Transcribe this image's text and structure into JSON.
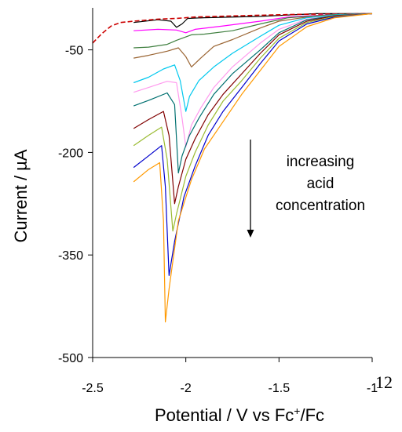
{
  "figure_number": "12",
  "chart_data": {
    "type": "line",
    "xlabel": "Potential / V vs Fc",
    "xlabel_sup": "+",
    "xlabel_tail": "/Fc",
    "ylabel": "Current / µA",
    "xlim": [
      -2.5,
      -1
    ],
    "ylim": [
      -500,
      0
    ],
    "x_ticks": [
      -2.5,
      -2,
      -1.5,
      -1
    ],
    "x_tick_labels": [
      "-2.5",
      "-2",
      "-1.5",
      "-1"
    ],
    "y_ticks": [
      -50,
      -200,
      -350,
      -500
    ],
    "y_tick_labels": [
      "-50",
      "-200",
      "-350",
      "-500"
    ],
    "grid": false,
    "annotation": {
      "lines": [
        "increasing",
        "acid",
        "concentration"
      ],
      "arrow": "down"
    },
    "series": [
      {
        "color": "#000000",
        "style": "solid",
        "points": [
          [
            -2.28,
            -10
          ],
          [
            -2.15,
            -6
          ],
          [
            -2.08,
            -8
          ],
          [
            -2.05,
            -17
          ],
          [
            -2.02,
            -12
          ],
          [
            -1.99,
            -4
          ],
          [
            -1.9,
            -3
          ],
          [
            -1.6,
            -1
          ],
          [
            -1.3,
            3
          ],
          [
            -1,
            3
          ]
        ]
      },
      {
        "color": "#cc0000",
        "style": "dashed",
        "points": [
          [
            -2.5,
            -40
          ],
          [
            -2.45,
            -26
          ],
          [
            -2.4,
            -15
          ],
          [
            -2.35,
            -10
          ],
          [
            -2.28,
            -8
          ],
          [
            -2.15,
            -5
          ],
          [
            -2.05,
            -4
          ],
          [
            -1.95,
            -2
          ],
          [
            -1.7,
            0
          ],
          [
            -1.4,
            2
          ],
          [
            -1,
            3
          ]
        ]
      },
      {
        "color": "#ff00ff",
        "style": "solid",
        "points": [
          [
            -2.28,
            -22
          ],
          [
            -2.15,
            -20
          ],
          [
            -2.05,
            -21
          ],
          [
            -2.0,
            -25
          ],
          [
            -1.95,
            -20
          ],
          [
            -1.8,
            -15
          ],
          [
            -1.6,
            -8
          ],
          [
            -1.45,
            -2
          ],
          [
            -1.2,
            2
          ],
          [
            -1,
            3
          ]
        ]
      },
      {
        "color": "#3f7f3f",
        "style": "solid",
        "points": [
          [
            -2.28,
            -47
          ],
          [
            -2.2,
            -46
          ],
          [
            -2.1,
            -42
          ],
          [
            -2.05,
            -36
          ],
          [
            -1.97,
            -28
          ],
          [
            -1.9,
            -27
          ],
          [
            -1.75,
            -22
          ],
          [
            -1.6,
            -12
          ],
          [
            -1.45,
            -3
          ],
          [
            -1.2,
            2
          ],
          [
            -1,
            3
          ]
        ]
      },
      {
        "color": "#9a6432",
        "style": "solid",
        "points": [
          [
            -2.28,
            -62
          ],
          [
            -2.2,
            -58
          ],
          [
            -2.1,
            -52
          ],
          [
            -2.04,
            -47
          ],
          [
            -2.0,
            -60
          ],
          [
            -1.97,
            -75
          ],
          [
            -1.92,
            -62
          ],
          [
            -1.85,
            -45
          ],
          [
            -1.75,
            -35
          ],
          [
            -1.6,
            -18
          ],
          [
            -1.5,
            -8
          ],
          [
            -1.3,
            0
          ],
          [
            -1,
            3
          ]
        ]
      },
      {
        "color": "#00c8ee",
        "style": "solid",
        "points": [
          [
            -2.28,
            -98
          ],
          [
            -2.2,
            -90
          ],
          [
            -2.12,
            -78
          ],
          [
            -2.06,
            -72
          ],
          [
            -2.03,
            -95
          ],
          [
            -2.0,
            -140
          ],
          [
            -1.98,
            -118
          ],
          [
            -1.93,
            -95
          ],
          [
            -1.85,
            -75
          ],
          [
            -1.75,
            -55
          ],
          [
            -1.6,
            -30
          ],
          [
            -1.5,
            -14
          ],
          [
            -1.35,
            -3
          ],
          [
            -1.2,
            1
          ],
          [
            -1,
            3
          ]
        ]
      },
      {
        "color": "#ff99ee",
        "style": "solid",
        "points": [
          [
            -2.28,
            -112
          ],
          [
            -2.2,
            -105
          ],
          [
            -2.1,
            -96
          ],
          [
            -2.05,
            -98
          ],
          [
            -2.02,
            -150
          ],
          [
            -2.0,
            -192
          ],
          [
            -1.97,
            -160
          ],
          [
            -1.92,
            -135
          ],
          [
            -1.85,
            -105
          ],
          [
            -1.75,
            -75
          ],
          [
            -1.6,
            -40
          ],
          [
            -1.5,
            -20
          ],
          [
            -1.35,
            -5
          ],
          [
            -1.2,
            0
          ],
          [
            -1,
            3
          ]
        ]
      },
      {
        "color": "#007070",
        "style": "solid",
        "points": [
          [
            -2.28,
            -132
          ],
          [
            -2.2,
            -124
          ],
          [
            -2.1,
            -113
          ],
          [
            -2.06,
            -130
          ],
          [
            -2.04,
            -230
          ],
          [
            -2.02,
            -205
          ],
          [
            -1.98,
            -175
          ],
          [
            -1.93,
            -150
          ],
          [
            -1.85,
            -115
          ],
          [
            -1.75,
            -85
          ],
          [
            -1.6,
            -50
          ],
          [
            -1.5,
            -25
          ],
          [
            -1.35,
            -6
          ],
          [
            -1.2,
            0
          ],
          [
            -1,
            3
          ]
        ]
      },
      {
        "color": "#800000",
        "style": "solid",
        "points": [
          [
            -2.28,
            -165
          ],
          [
            -2.2,
            -152
          ],
          [
            -2.12,
            -140
          ],
          [
            -2.09,
            -175
          ],
          [
            -2.06,
            -275
          ],
          [
            -2.04,
            -250
          ],
          [
            -2.0,
            -210
          ],
          [
            -1.95,
            -180
          ],
          [
            -1.88,
            -145
          ],
          [
            -1.8,
            -115
          ],
          [
            -1.7,
            -85
          ],
          [
            -1.6,
            -55
          ],
          [
            -1.5,
            -28
          ],
          [
            -1.35,
            -8
          ],
          [
            -1.2,
            0
          ],
          [
            -1,
            3
          ]
        ]
      },
      {
        "color": "#9bbb33",
        "style": "solid",
        "points": [
          [
            -2.28,
            -190
          ],
          [
            -2.2,
            -175
          ],
          [
            -2.13,
            -163
          ],
          [
            -2.1,
            -210
          ],
          [
            -2.07,
            -315
          ],
          [
            -2.05,
            -290
          ],
          [
            -2.0,
            -235
          ],
          [
            -1.95,
            -200
          ],
          [
            -1.88,
            -160
          ],
          [
            -1.8,
            -125
          ],
          [
            -1.7,
            -95
          ],
          [
            -1.6,
            -62
          ],
          [
            -1.5,
            -33
          ],
          [
            -1.35,
            -10
          ],
          [
            -1.2,
            -1
          ],
          [
            -1,
            3
          ]
        ]
      },
      {
        "color": "#0000cc",
        "style": "solid",
        "points": [
          [
            -2.28,
            -222
          ],
          [
            -2.2,
            -205
          ],
          [
            -2.13,
            -190
          ],
          [
            -2.11,
            -250
          ],
          [
            -2.09,
            -380
          ],
          [
            -2.06,
            -330
          ],
          [
            -2.01,
            -265
          ],
          [
            -1.95,
            -220
          ],
          [
            -1.88,
            -175
          ],
          [
            -1.8,
            -140
          ],
          [
            -1.7,
            -105
          ],
          [
            -1.6,
            -70
          ],
          [
            -1.5,
            -37
          ],
          [
            -1.35,
            -12
          ],
          [
            -1.2,
            -2
          ],
          [
            -1,
            3
          ]
        ]
      },
      {
        "color": "#ff9900",
        "style": "solid",
        "points": [
          [
            -2.28,
            -243
          ],
          [
            -2.2,
            -225
          ],
          [
            -2.14,
            -215
          ],
          [
            -2.12,
            -300
          ],
          [
            -2.11,
            -448
          ],
          [
            -2.09,
            -400
          ],
          [
            -2.04,
            -300
          ],
          [
            -1.97,
            -240
          ],
          [
            -1.9,
            -195
          ],
          [
            -1.8,
            -155
          ],
          [
            -1.7,
            -115
          ],
          [
            -1.6,
            -80
          ],
          [
            -1.5,
            -45
          ],
          [
            -1.35,
            -16
          ],
          [
            -1.2,
            -3
          ],
          [
            -1,
            3
          ]
        ]
      }
    ]
  }
}
